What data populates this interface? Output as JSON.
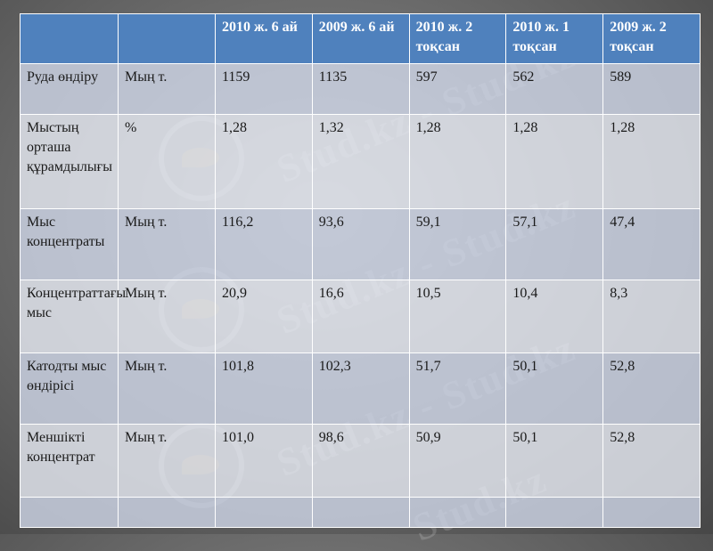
{
  "table": {
    "columns": [
      "",
      "",
      "2010 ж. 6 ай",
      "2009 ж. 6 ай",
      "2010 ж.  2 тоқсан",
      "2010 ж. 1 тоқсан",
      "2009 ж. 2 тоқсан"
    ],
    "rows": [
      [
        "Руда өндіру",
        "Мың т.",
        "1159",
        "1135",
        "597",
        "562",
        "589"
      ],
      [
        "Мыстың орташа құрамдылығы",
        "%",
        "1,28",
        "1,32",
        "1,28",
        "1,28",
        "1,28"
      ],
      [
        "Мыс концентраты",
        "Мың т.",
        "116,2",
        "93,6",
        "59,1",
        "57,1",
        "47,4"
      ],
      [
        "Концентраттағы мыс",
        "Мың т.",
        "20,9",
        "16,6",
        "10,5",
        "10,4",
        "8,3"
      ],
      [
        "Катодты мыс өндірісі",
        "Мың т.",
        "101,8",
        "102,3",
        "51,7",
        "50,1",
        "52,8"
      ],
      [
        "Меншікті концентрат",
        "Мың т.",
        "101,0",
        "98,6",
        "50,9",
        "50,1",
        "52,8"
      ],
      [
        "",
        "",
        "",
        "",
        "",
        "",
        ""
      ]
    ]
  },
  "watermark": {
    "text": "Stud.kz",
    "full_text": "Stud.kz - Stud.kz"
  },
  "colors": {
    "header_bg": "#4f81bd",
    "row_dark": "#cfd7e8",
    "row_light": "#e9ecf5",
    "page_bg": "#6d6d6d"
  }
}
